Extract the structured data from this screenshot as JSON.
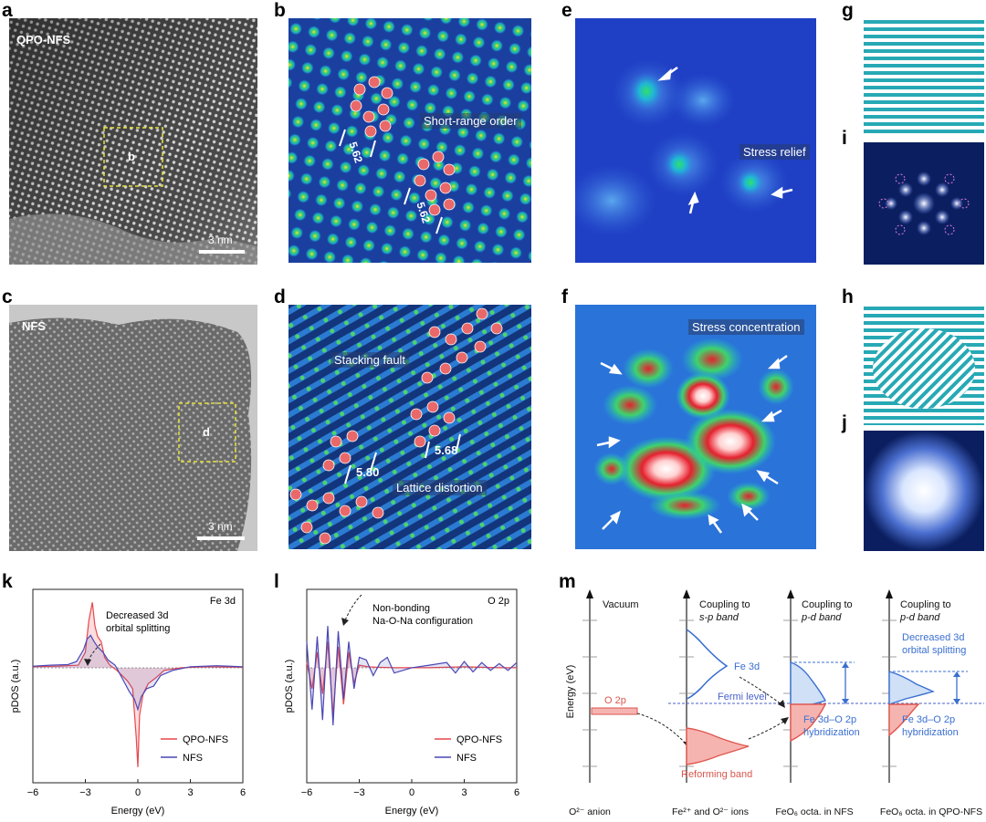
{
  "panels": {
    "a": {
      "letter": "a",
      "label": "QPO-NFS",
      "box_label": "b",
      "scale": "3 nm"
    },
    "b": {
      "letter": "b",
      "label": "Short-range order",
      "dist1": "5.62",
      "dist2": "5.62"
    },
    "c": {
      "letter": "c",
      "label": "NFS",
      "box_label": "d",
      "scale": "3 nm"
    },
    "d": {
      "letter": "d",
      "label1": "Stacking fault",
      "label2": "Lattice distortion",
      "dist1": "5.80",
      "dist2": "5.68"
    },
    "e": {
      "letter": "e",
      "label": "Stress relief"
    },
    "f": {
      "letter": "f",
      "label": "Stress concentration"
    },
    "g": {
      "letter": "g"
    },
    "h": {
      "letter": "h"
    },
    "i": {
      "letter": "i"
    },
    "j": {
      "letter": "j"
    }
  },
  "chart_data": [
    {
      "type": "line",
      "panel": "k",
      "title": "Fe 3d",
      "annotation": "Decreased 3d orbital splitting",
      "xlabel": "Energy (eV)",
      "ylabel": "pDOS (a.u.)",
      "xlim": [
        -6,
        6
      ],
      "xticks": [
        -6,
        -3,
        0,
        3,
        6
      ],
      "xtick_labels": [
        "−6",
        "−3",
        "0",
        "3",
        "6"
      ],
      "series": [
        {
          "name": "QPO-NFS",
          "color": "#e8474b",
          "x": [
            -6,
            -4.5,
            -3.4,
            -3.0,
            -2.8,
            -2.6,
            -2.45,
            -2.3,
            -2.1,
            -1.9,
            -1.6,
            -1.2,
            -0.6,
            -0.3,
            -0.1,
            0,
            0.1,
            0.3,
            0.6,
            1.0,
            1.5,
            2.5,
            4,
            6
          ],
          "y": [
            0.02,
            0.03,
            0.05,
            0.3,
            0.9,
            1.25,
            0.8,
            0.6,
            0.5,
            0.2,
            0.05,
            -0.05,
            -0.25,
            -0.4,
            -1.3,
            -1.9,
            -0.9,
            -0.5,
            -0.3,
            -0.2,
            -0.05,
            0.0,
            0.02,
            0.01
          ]
        },
        {
          "name": "NFS",
          "color": "#4a47b5",
          "x": [
            -6,
            -5,
            -4,
            -3.5,
            -3.1,
            -2.9,
            -2.7,
            -2.5,
            -2.3,
            -2.0,
            -1.7,
            -1.3,
            -0.9,
            -0.5,
            -0.2,
            0,
            0.2,
            0.5,
            0.9,
            1.3,
            2,
            3,
            4.5,
            6
          ],
          "y": [
            0.03,
            0.05,
            0.06,
            0.12,
            0.35,
            0.55,
            0.62,
            0.5,
            0.4,
            0.3,
            0.15,
            0.05,
            -0.2,
            -0.45,
            -0.6,
            -0.8,
            -0.55,
            -0.4,
            -0.35,
            -0.15,
            -0.05,
            0.02,
            0.04,
            0.02
          ]
        }
      ]
    },
    {
      "type": "line",
      "panel": "l",
      "title": "O 2p",
      "annotation": "Non-bonding Na-O-Na configuration",
      "xlabel": "Energy (eV)",
      "ylabel": "pDOS (a.u.)",
      "xlim": [
        -6,
        6
      ],
      "xticks": [
        -6,
        -3,
        0,
        3,
        6
      ],
      "xtick_labels": [
        "−6",
        "−3",
        "0",
        "3",
        "6"
      ],
      "series": [
        {
          "name": "QPO-NFS",
          "color": "#e8474b",
          "x": [
            -6,
            -5.7,
            -5.4,
            -5.1,
            -4.8,
            -4.5,
            -4.2,
            -3.9,
            -3.6,
            -3.3,
            -3.0,
            -2.5,
            -2,
            -1,
            0,
            1,
            2,
            3,
            4,
            5,
            6
          ],
          "y": [
            0.1,
            -0.4,
            0.3,
            -0.5,
            0.5,
            -0.9,
            0.4,
            -0.7,
            0.3,
            -0.3,
            0.05,
            0.02,
            0.01,
            0.0,
            0.0,
            0.0,
            0.01,
            0.02,
            0.01,
            0.0,
            0.0
          ]
        },
        {
          "name": "NFS",
          "color": "#4a47b5",
          "x": [
            -6,
            -5.7,
            -5.4,
            -5.1,
            -4.8,
            -4.5,
            -4.2,
            -3.9,
            -3.6,
            -3.3,
            -3.0,
            -2.6,
            -2.2,
            -1.8,
            -1.4,
            -1,
            0,
            1,
            2,
            2.5,
            3,
            3.5,
            4,
            4.5,
            5,
            5.5,
            6
          ],
          "y": [
            0.5,
            -0.8,
            0.6,
            -1.0,
            0.8,
            -1.1,
            0.7,
            -0.6,
            0.5,
            -0.4,
            0.2,
            0.15,
            -0.15,
            0.1,
            0.2,
            -0.1,
            0.0,
            0.05,
            0.1,
            -0.1,
            0.12,
            -0.08,
            0.1,
            -0.05,
            0.08,
            -0.05,
            0.1
          ]
        }
      ]
    }
  ],
  "m": {
    "letter": "m",
    "ylabel": "Energy (eV)",
    "vacuum": "Vacuum",
    "col2_title_1": "Coupling to",
    "col2_title_2": "s-p band",
    "col3_title_1": "Coupling to",
    "col3_title_2": "p-d band",
    "col4_title_1": "Coupling to",
    "col4_title_2": "p-d band",
    "o2p": "O 2p",
    "fe3d": "Fe 3d",
    "fermi": "Fermi level",
    "reforming": "Reforming band",
    "hyb1_1": "Fe 3d–O 2p",
    "hyb1_2": "hybridization",
    "hyb2_1": "Fe 3d–O 2p",
    "hyb2_2": "hybridization",
    "decreased_1": "Decreased 3d",
    "decreased_2": "orbital splitting",
    "x1": "O²⁻ anion",
    "x2": "Fe²⁺ and O²⁻ ions",
    "x3": "FeO₆ octa. in NFS",
    "x4": "FeO₆ octa. in QPO-NFS"
  },
  "colors": {
    "red": "#e8474b",
    "blue": "#4a47b5",
    "fermi": "#4a62c9",
    "annot_blue": "#3a6fd0"
  }
}
